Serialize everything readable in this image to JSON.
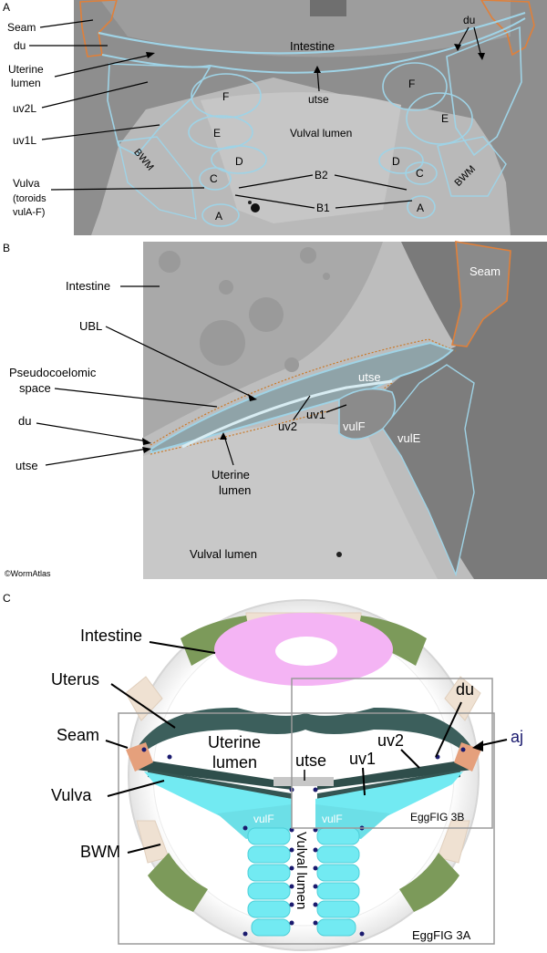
{
  "panel_a": {
    "letter": "A",
    "labels": {
      "seam": "Seam",
      "du_left": "du",
      "du_right": "du",
      "uterine_lumen_1": "Uterine",
      "uterine_lumen_2": "lumen",
      "uv2l": "uv2L",
      "uv1l": "uv1L",
      "vulva_1": "Vulva",
      "vulva_2": "(toroids",
      "vulva_3": "vulA-F)",
      "intestine": "Intestine",
      "utse": "utse",
      "vulval_lumen": "Vulval lumen",
      "bwm_left": "BWM",
      "bwm_right": "BWM",
      "b2": "B2",
      "b1": "B1"
    },
    "toroids_left": [
      "F",
      "E",
      "D",
      "C",
      "A"
    ],
    "toroids_right": [
      "F",
      "E",
      "D",
      "C",
      "A"
    ]
  },
  "panel_b": {
    "letter": "B",
    "labels": {
      "intestine": "Intestine",
      "ubl": "UBL",
      "pseudo_1": "Pseudocoelomic",
      "pseudo_2": "space",
      "du": "du",
      "utse_left": "utse",
      "utse_cell": "utse",
      "uv2": "uv2",
      "uv1": "uv1",
      "vulf": "vulF",
      "vule": "vulE",
      "seam": "Seam",
      "uterine_lumen_1": "Uterine",
      "uterine_lumen_2": "lumen",
      "vulval_lumen": "Vulval lumen",
      "credit": "©WormAtlas"
    }
  },
  "panel_c": {
    "letter": "C",
    "labels": {
      "intestine": "Intestine",
      "uterus": "Uterus",
      "seam": "Seam",
      "vulva": "Vulva",
      "bwm": "BWM",
      "uterine_lumen_1": "Uterine",
      "uterine_lumen_2": "lumen",
      "utse": "utse",
      "du": "du",
      "uv2": "uv2",
      "uv1": "uv1",
      "aj": "aj",
      "vulf_left": "vulF",
      "vulf_right": "vulF",
      "vulval_lumen": "Vulval lumen",
      "egg_3b": "EggFIG 3B",
      "egg_3a": "EggFIG 3A"
    }
  },
  "colors": {
    "outline_blue": "#9fd3e6",
    "seam_orange": "#e0803a",
    "vulva_cyan": "#72eaf2",
    "bwm_green": "#7c9a5a",
    "intestine_pink": "#f0a0f0",
    "seam_c": "#e5a07c"
  }
}
